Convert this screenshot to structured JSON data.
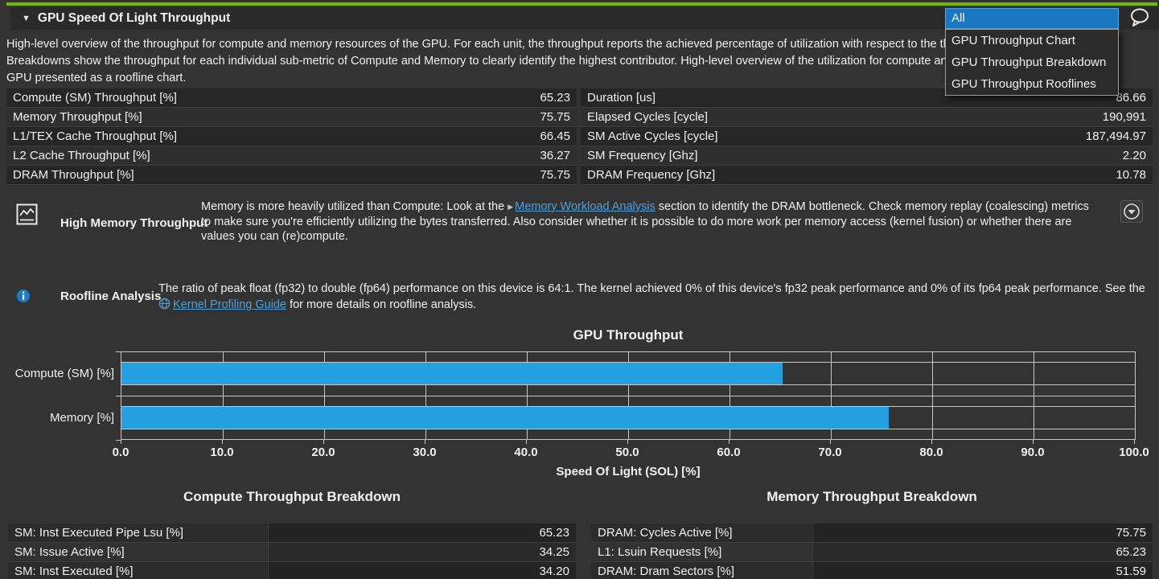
{
  "colors": {
    "accent_green": "#76b900",
    "bar_blue": "#22a0e0",
    "link_blue": "#4da0dc",
    "selection_blue": "#1a78c2"
  },
  "header": {
    "title": "GPU Speed Of Light Throughput"
  },
  "toolbar": {
    "selected": "All",
    "options": [
      "GPU Throughput Chart",
      "GPU Throughput Breakdown",
      "GPU Throughput Rooflines"
    ]
  },
  "description": {
    "lines": [
      "High-level overview of the throughput for compute and memory resources of the GPU. For each unit, the throughput reports the achieved percentage of utilization with respect to the theoretical maximum.",
      "Breakdowns show the throughput for each individual sub-metric of Compute and Memory to clearly identify the highest contributor. High-level overview of the utilization for compute and memory resources of the",
      "GPU presented as a roofline chart."
    ]
  },
  "metrics": {
    "left": [
      {
        "label": "Compute (SM) Throughput [%]",
        "value": "65.23"
      },
      {
        "label": "Memory Throughput [%]",
        "value": "75.75"
      },
      {
        "label": "L1/TEX Cache Throughput [%]",
        "value": "66.45"
      },
      {
        "label": "L2 Cache Throughput [%]",
        "value": "36.27"
      },
      {
        "label": "DRAM Throughput [%]",
        "value": "75.75"
      }
    ],
    "right": [
      {
        "label": "Duration [us]",
        "value": "86.66"
      },
      {
        "label": "Elapsed Cycles [cycle]",
        "value": "190,991"
      },
      {
        "label": "SM Active Cycles [cycle]",
        "value": "187,494.97"
      },
      {
        "label": "SM Frequency [Ghz]",
        "value": "2.20"
      },
      {
        "label": "DRAM Frequency [Ghz]",
        "value": "10.78"
      }
    ]
  },
  "recommendations": [
    {
      "title": "High Memory Throughput",
      "text_before": "Memory is more heavily utilized than Compute: Look at the ",
      "link_text": "Memory Workload Analysis",
      "text_after": " section to identify the DRAM bottleneck. Check memory replay (coalescing) metrics to make sure you're efficiently utilizing the bytes transferred. Also consider whether it is possible to do more work per memory access (kernel fusion) or whether there are values you can (re)compute."
    },
    {
      "title": "Roofline Analysis",
      "text_before": "The ratio of peak float (fp32) to double (fp64) performance on this device is 64:1. The kernel achieved 0% of this device's fp32 peak performance and 0% of its fp64 peak performance. See the ",
      "link_text": "Kernel Profiling Guide",
      "text_after": " for more details on roofline analysis."
    }
  ],
  "chart_data": {
    "type": "bar",
    "orientation": "horizontal",
    "title": "GPU Throughput",
    "categories": [
      "Compute (SM) [%]",
      "Memory [%]"
    ],
    "values": [
      65.23,
      75.75
    ],
    "xlabel": "Speed Of Light (SOL) [%]",
    "xlim": [
      0,
      100
    ],
    "xticks": [
      0,
      10,
      20,
      30,
      40,
      50,
      60,
      70,
      80,
      90,
      100
    ],
    "tick_labels": [
      "0.0",
      "10.0",
      "20.0",
      "30.0",
      "40.0",
      "50.0",
      "60.0",
      "70.0",
      "80.0",
      "90.0",
      "100.0"
    ],
    "grid": true,
    "bar_color": "#22a0e0"
  },
  "breakdowns": {
    "compute": {
      "title": "Compute Throughput Breakdown",
      "rows": [
        {
          "label": "SM: Inst Executed Pipe Lsu [%]",
          "value": "65.23"
        },
        {
          "label": "SM: Issue Active [%]",
          "value": "34.25"
        },
        {
          "label": "SM: Inst Executed [%]",
          "value": "34.20"
        }
      ]
    },
    "memory": {
      "title": "Memory Throughput Breakdown",
      "rows": [
        {
          "label": "DRAM: Cycles Active [%]",
          "value": "75.75"
        },
        {
          "label": "L1: Lsuin Requests [%]",
          "value": "65.23"
        },
        {
          "label": "DRAM: Dram Sectors [%]",
          "value": "51.59"
        }
      ]
    }
  }
}
